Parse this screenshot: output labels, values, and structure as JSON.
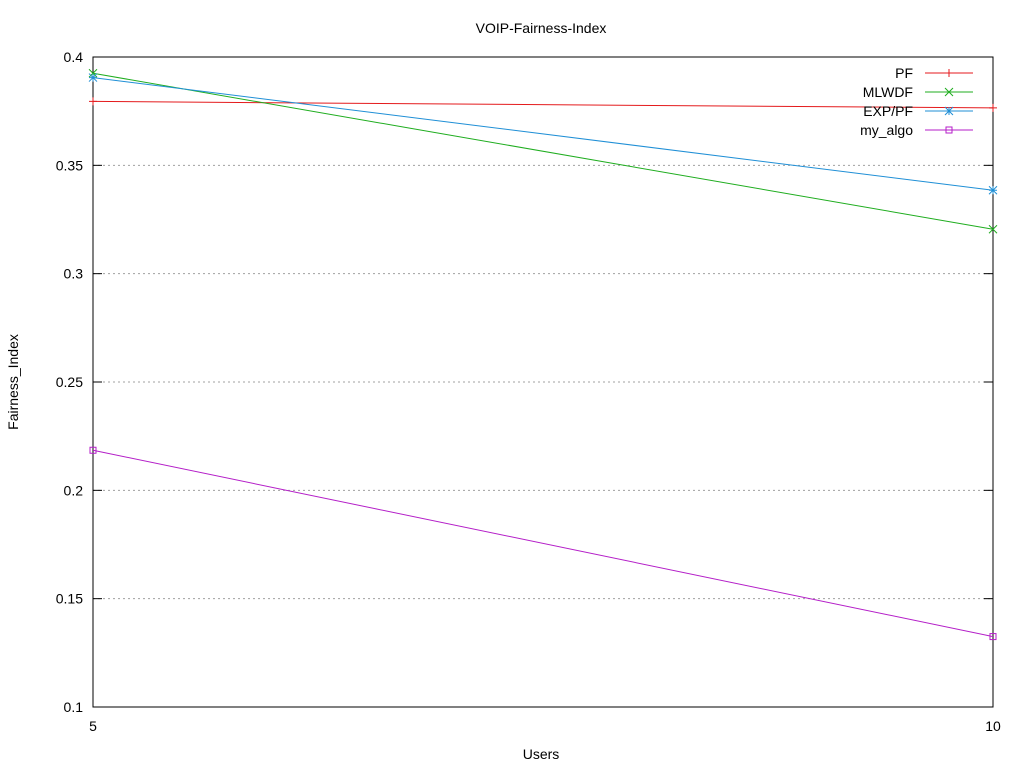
{
  "chart_data": {
    "type": "line",
    "title": "VOIP-Fairness-Index",
    "xlabel": "Users",
    "ylabel": "Fairness_Index",
    "x": [
      5,
      10
    ],
    "xlim": [
      5,
      10
    ],
    "ylim": [
      0.1,
      0.4
    ],
    "x_ticks": [
      5,
      10
    ],
    "x_tick_labels": [
      "5",
      "10"
    ],
    "y_ticks": [
      0.1,
      0.15,
      0.2,
      0.25,
      0.3,
      0.35,
      0.4
    ],
    "y_tick_labels": [
      "0.1",
      "0.15",
      "0.2",
      "0.25",
      "0.3",
      "0.35",
      "0.4"
    ],
    "grid": "horizontal-dotted",
    "legend_position": "top-right",
    "series": [
      {
        "name": "PF",
        "values": [
          0.3795,
          0.3765
        ],
        "color": "#e41a1c",
        "marker": "plus"
      },
      {
        "name": "MLWDF",
        "values": [
          0.3925,
          0.3205
        ],
        "color": "#1fad1f",
        "marker": "cross"
      },
      {
        "name": "EXP/PF",
        "values": [
          0.3905,
          0.3385
        ],
        "color": "#1f8fd6",
        "marker": "star"
      },
      {
        "name": "my_algo",
        "values": [
          0.2185,
          0.1325
        ],
        "color": "#b41ec8",
        "marker": "square"
      }
    ]
  }
}
